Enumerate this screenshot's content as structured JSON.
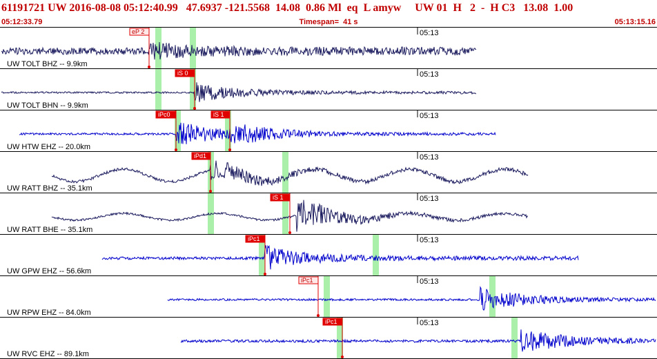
{
  "header": {
    "event_line": "61191721 UW 2016-08-08 05:12:40.99   47.6937 -121.5568  14.08  0.86 Ml  eq  L amyw     UW 01  H   2  -  H C3   13.08  1.00",
    "start_time": "05:12:33.79",
    "timespan": "Timespan=  41 s",
    "end_time": "05:13:15.16"
  },
  "colors": {
    "header_text": "#c00000",
    "trace_dark": "#1a1a5e",
    "trace_blue": "#0000cc",
    "window_green": "#aaf0aa",
    "pick_red": "#e00000"
  },
  "traces": [
    {
      "label": "UW TOLT BHZ -- 9.9km",
      "time_label": "05:13",
      "style": "dark",
      "picks": [
        {
          "text": "eP 2",
          "style": "pink"
        }
      ]
    },
    {
      "label": "UW TOLT BHN -- 9.9km",
      "time_label": "05:13",
      "style": "dark",
      "picks": [
        {
          "text": "iS 0",
          "style": "red"
        }
      ]
    },
    {
      "label": "UW HTW EHZ -- 20.0km",
      "time_label": "05:13",
      "style": "blue",
      "picks": [
        {
          "text": "iPc0",
          "style": "red"
        },
        {
          "text": "iS 1",
          "style": "red"
        }
      ]
    },
    {
      "label": "UW RATT BHZ -- 35.1km",
      "time_label": "05:13",
      "style": "dark",
      "picks": [
        {
          "text": "iPd1",
          "style": "red"
        }
      ]
    },
    {
      "label": "UW RATT BHE -- 35.1km",
      "time_label": "05:13",
      "style": "dark",
      "picks": [
        {
          "text": "iS 1",
          "style": "red"
        }
      ]
    },
    {
      "label": "UW GPW EHZ -- 56.6km",
      "time_label": "05:13",
      "style": "blue",
      "picks": [
        {
          "text": "iPc1",
          "style": "red"
        }
      ]
    },
    {
      "label": "UW RPW EHZ -- 84.0km",
      "time_label": "05:13",
      "style": "blue",
      "picks": [
        {
          "text": "iPc1",
          "style": "pink"
        }
      ]
    },
    {
      "label": "UW RVC EHZ -- 89.1km",
      "time_label": "05:13",
      "style": "blue",
      "picks": [
        {
          "text": "iPc1",
          "style": "red"
        }
      ]
    }
  ]
}
